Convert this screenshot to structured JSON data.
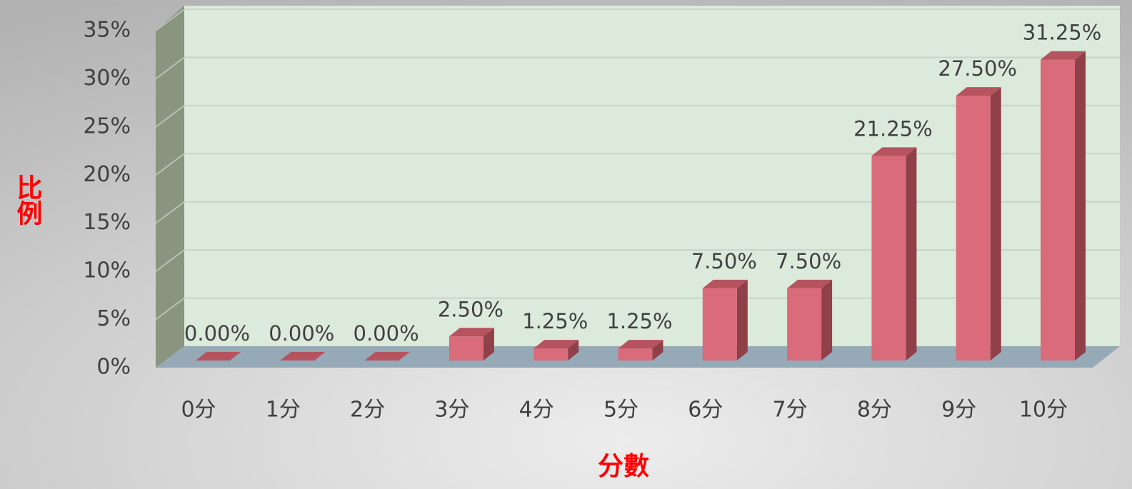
{
  "chart_data": {
    "type": "bar3d",
    "categories": [
      "0分",
      "1分",
      "2分",
      "3分",
      "4分",
      "5分",
      "6分",
      "7分",
      "8分",
      "9分",
      "10分"
    ],
    "values": [
      0,
      0,
      0,
      2.5,
      1.25,
      1.25,
      7.5,
      7.5,
      21.25,
      27.5,
      31.25
    ],
    "value_labels": [
      "0.00%",
      "0.00%",
      "0.00%",
      "2.50%",
      "1.25%",
      "1.25%",
      "7.50%",
      "7.50%",
      "21.25%",
      "27.50%",
      "31.25%"
    ],
    "color": "#d96b7a",
    "x_label": "分數",
    "y_label": "比例",
    "ylim": [
      0,
      35
    ],
    "yticks": [
      {
        "value": 0,
        "label": "0%"
      },
      {
        "value": 5,
        "label": "5%"
      },
      {
        "value": 10,
        "label": "10%"
      },
      {
        "value": 15,
        "label": "15%"
      },
      {
        "value": 20,
        "label": "20%"
      },
      {
        "value": 25,
        "label": "25%"
      },
      {
        "value": 30,
        "label": "30%"
      },
      {
        "value": 35,
        "label": "35%"
      }
    ],
    "grid": true
  }
}
